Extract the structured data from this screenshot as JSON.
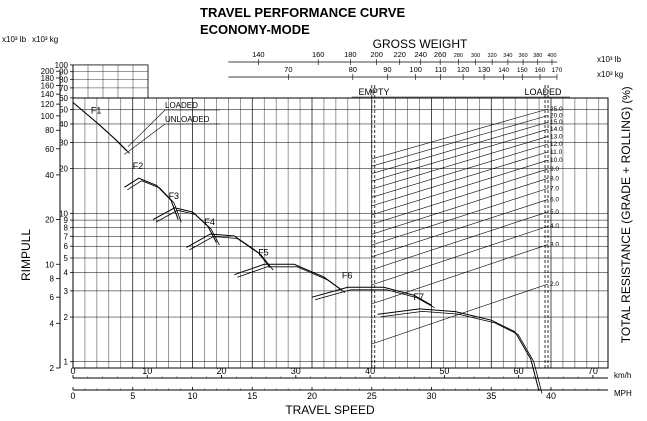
{
  "chart_data": {
    "type": "line",
    "title": "TRAVEL PERFORMANCE CURVE",
    "subtitle": "ECONOMY-MODE",
    "xlabel": "TRAVEL SPEED",
    "ylabel": "RIMPULL",
    "right_label": "TOTAL RESISTANCE (GRADE + ROLLING)",
    "right_unit": "(%)",
    "x_scale": "linear",
    "y_scale": "log",
    "xlim_mph": [
      0,
      45
    ],
    "kmh_ticks": [
      "0",
      "10",
      "20",
      "30",
      "40",
      "50",
      "60",
      "70"
    ],
    "mph_ticks": [
      "0",
      "5",
      "10",
      "15",
      "20",
      "25",
      "30",
      "35",
      "40"
    ],
    "x_unit_kmh": "km/h",
    "x_unit_mph": "MPH",
    "y_unit_lb": "x10³ lb",
    "y_unit_kg": "x10³ kg",
    "lb_ticks": [
      "2",
      "4",
      "6",
      "8",
      "10",
      "20",
      "40",
      "60",
      "80",
      "100",
      "120",
      "140",
      "160",
      "180",
      "200"
    ],
    "kg_ticks": [
      "1",
      "2",
      "3",
      "4",
      "5",
      "6",
      "7",
      "8",
      "9",
      "10",
      "20",
      "30",
      "40",
      "50",
      "60",
      "70",
      "80",
      "90",
      "100"
    ],
    "gross_weight_label": "GROSS WEIGHT",
    "gross_lb_ticks": [
      "140",
      "160",
      "180",
      "200",
      "220",
      "240",
      "260",
      "280",
      "300",
      "320",
      "340",
      "360",
      "380",
      "400"
    ],
    "gross_kg_ticks": [
      "70",
      "80",
      "90",
      "100",
      "110",
      "120",
      "130",
      "140",
      "150",
      "160",
      "170"
    ],
    "gross_lb_unit": "x10³ lb",
    "gross_kg_unit": "x10³ kg",
    "empty_label": "EMPTY",
    "loaded_label": "LOADED",
    "resistance_labels": [
      "2.0",
      "3.0",
      "4.0",
      "5.0",
      "6.0",
      "7.0",
      "8.0",
      "9.0",
      "10.0",
      "11.0",
      "12.0",
      "13.0",
      "14.0",
      "15.0",
      "20.0",
      "25.0"
    ],
    "legend": [
      "LOADED",
      "UNLOADED"
    ],
    "gears": [
      {
        "name": "F1",
        "points": [
          [
            0,
            123
          ],
          [
            2,
            90
          ],
          [
            3.5,
            70
          ],
          [
            4.5,
            58
          ]
        ]
      },
      {
        "name": "F2",
        "points": [
          [
            4.3,
            33
          ],
          [
            5.5,
            38
          ],
          [
            7,
            34
          ],
          [
            8.2,
            27
          ],
          [
            8.8,
            20
          ]
        ]
      },
      {
        "name": "F3",
        "points": [
          [
            6.7,
            20
          ],
          [
            8.5,
            24
          ],
          [
            10,
            22.5
          ],
          [
            11.3,
            18
          ],
          [
            12,
            14
          ]
        ]
      },
      {
        "name": "F4",
        "points": [
          [
            9.5,
            13
          ],
          [
            11.5,
            16
          ],
          [
            13.5,
            15.5
          ],
          [
            15.5,
            12
          ],
          [
            16.5,
            9.5
          ]
        ]
      },
      {
        "name": "F5",
        "points": [
          [
            13.5,
            8.5
          ],
          [
            16,
            10
          ],
          [
            18.5,
            10
          ],
          [
            21,
            8.2
          ],
          [
            22.5,
            6.7
          ]
        ]
      },
      {
        "name": "F6",
        "points": [
          [
            20,
            6
          ],
          [
            23,
            7
          ],
          [
            26,
            7
          ],
          [
            28.5,
            6.2
          ],
          [
            30,
            5.3
          ]
        ]
      },
      {
        "name": "F7",
        "points": [
          [
            25.5,
            4.6
          ],
          [
            29,
            5
          ],
          [
            32,
            4.8
          ],
          [
            35,
            4.2
          ],
          [
            37,
            3.5
          ],
          [
            38.3,
            2.3
          ],
          [
            39,
            1.4
          ]
        ]
      }
    ]
  }
}
